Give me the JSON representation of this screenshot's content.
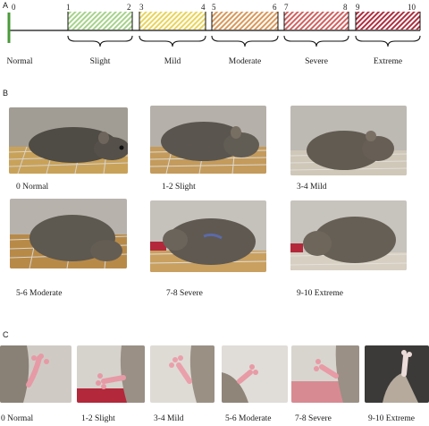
{
  "panels": {
    "a": {
      "letter": "A",
      "tick_numbers": [
        "0",
        "1",
        "2",
        "3",
        "4",
        "5",
        "6",
        "7",
        "8",
        "9",
        "10"
      ],
      "categories": [
        {
          "label": "Normal",
          "color": "#4a9a3a"
        },
        {
          "label": "Slight",
          "color": "#a6d38a"
        },
        {
          "label": "Mild",
          "color": "#e9d45a"
        },
        {
          "label": "Moderate",
          "color": "#d9985a"
        },
        {
          "label": "Severe",
          "color": "#d26060"
        },
        {
          "label": "Extreme",
          "color": "#b02e3e"
        }
      ]
    },
    "b": {
      "letter": "B",
      "captions": [
        "0   Normal",
        "1-2   Slight",
        "3-4 Mild",
        "5-6 Moderate",
        "7-8  Severe",
        "9-10 Extreme"
      ]
    },
    "c": {
      "letter": "C",
      "captions": [
        "0 Normal",
        "1-2  Slight",
        "3-4 Mild",
        "5-6 Moderate",
        "7-8  Severe",
        "9-10 Extreme"
      ]
    }
  }
}
